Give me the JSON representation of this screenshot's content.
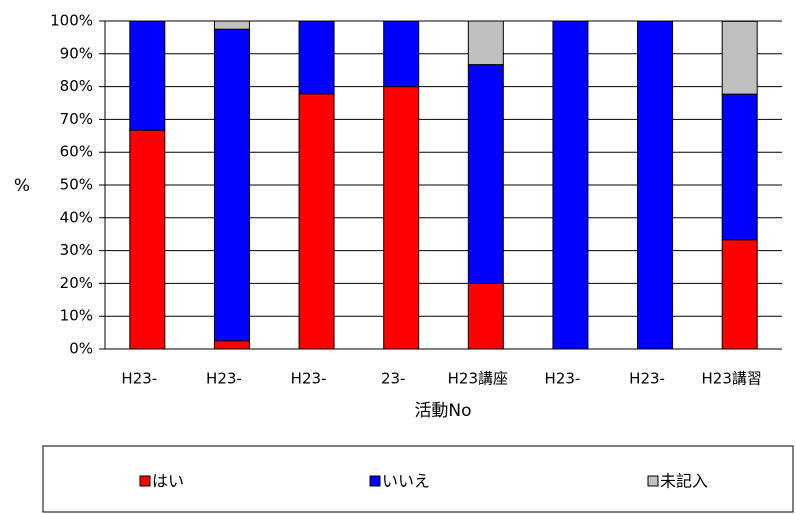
{
  "chart_data": {
    "type": "stacked_bar",
    "categories": [
      "H23-",
      "H23-",
      "H23-",
      "23-",
      "H23講座",
      "H23-",
      "H23-",
      "H23講習"
    ],
    "series": [
      {
        "name": "はい",
        "color": "#ff0000",
        "values": [
          66.7,
          2.5,
          77.8,
          80,
          20,
          0,
          0,
          33.3
        ]
      },
      {
        "name": "いいえ",
        "color": "#0000ff",
        "values": [
          33.3,
          95,
          22.2,
          20,
          66.7,
          100,
          100,
          44.4
        ]
      },
      {
        "name": "未記入",
        "color": "#c0c0c0",
        "values": [
          0,
          2.5,
          0,
          0,
          13.3,
          0,
          0,
          22.2
        ]
      }
    ],
    "ylabel": "%",
    "xlabel": "活動No",
    "ylim": [
      0,
      100
    ],
    "yticks": [
      {
        "value": 0,
        "label": "0%"
      },
      {
        "value": 10,
        "label": "10%"
      },
      {
        "value": 20,
        "label": "20%"
      },
      {
        "value": 30,
        "label": "30%"
      },
      {
        "value": 40,
        "label": "40%"
      },
      {
        "value": 50,
        "label": "50%"
      },
      {
        "value": 60,
        "label": "60%"
      },
      {
        "value": 70,
        "label": "70%"
      },
      {
        "value": 80,
        "label": "80%"
      },
      {
        "value": 90,
        "label": "90%"
      },
      {
        "value": 100,
        "label": "100%"
      }
    ],
    "grid": true,
    "legend": "bottom"
  }
}
